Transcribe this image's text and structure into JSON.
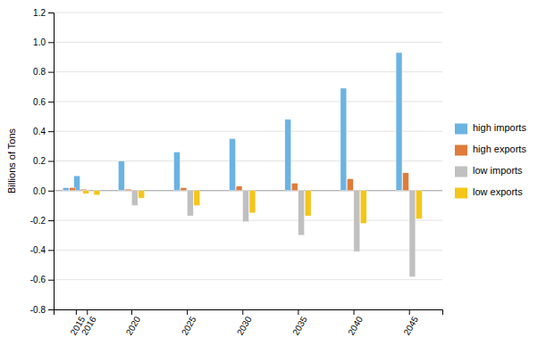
{
  "chart_data": {
    "type": "bar",
    "y_label": "Billions of Tons",
    "x": [
      2015,
      2016,
      2020,
      2025,
      2030,
      2035,
      2040,
      2045
    ],
    "xlim": [
      2013,
      2048
    ],
    "xticks": [
      2015,
      2016,
      2020,
      2025,
      2030,
      2035,
      2040,
      2045
    ],
    "ylim": [
      -0.8,
      1.2
    ],
    "yticks": [
      -0.8,
      -0.6,
      -0.4,
      -0.2,
      {
        "value": 0,
        "label": "0.0"
      },
      0.2,
      0.4,
      0.6,
      0.8,
      {
        "value": 1,
        "label": "1.0"
      },
      1.2
    ],
    "grid": true,
    "legend": "right",
    "series": [
      {
        "name": "high imports",
        "color": "#6BB3E3",
        "values": [
          0.02,
          0.1,
          0.2,
          0.26,
          0.35,
          0.48,
          0.69,
          0.93
        ]
      },
      {
        "name": "high exports",
        "color": "#E07B39",
        "values": [
          0.02,
          0.01,
          0.01,
          0.02,
          0.03,
          0.05,
          0.08,
          0.12
        ]
      },
      {
        "name": "low imports",
        "color": "#C0C0C0",
        "values": [
          0.0,
          0.0,
          -0.1,
          -0.17,
          -0.21,
          -0.3,
          -0.41,
          -0.58
        ]
      },
      {
        "name": "low exports",
        "color": "#F5C518",
        "values": [
          -0.02,
          -0.03,
          -0.05,
          -0.1,
          -0.15,
          -0.17,
          -0.22,
          -0.19
        ]
      }
    ]
  }
}
